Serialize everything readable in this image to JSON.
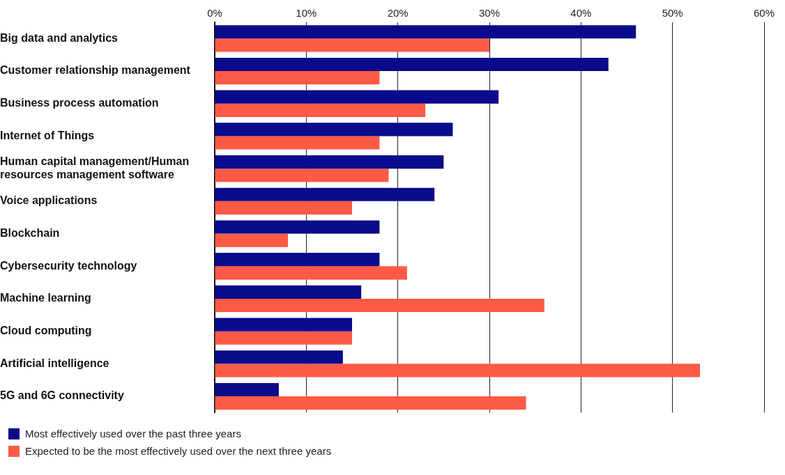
{
  "chart_data": {
    "type": "bar",
    "orientation": "horizontal",
    "categories": [
      "Big data and analytics",
      "Customer relationship management",
      "Business process automation",
      "Internet of Things",
      "Human capital management/Human resources management software",
      "Voice applications",
      "Blockchain",
      "Cybersecurity technology",
      "Machine learning",
      "Cloud computing",
      "Artificial intelligence",
      "5G and 6G connectivity"
    ],
    "series": [
      {
        "name": "Most effectively used over the past three years",
        "color": "#0a0a8c",
        "values": [
          46,
          43,
          31,
          26,
          25,
          24,
          18,
          18,
          16,
          15,
          14,
          7
        ]
      },
      {
        "name": "Expected to be the most effectively used over the next three years",
        "color": "#ff5a46",
        "values": [
          30,
          18,
          23,
          18,
          19,
          15,
          8,
          21,
          36,
          15,
          53,
          34
        ]
      }
    ],
    "xlim": [
      0,
      60
    ],
    "xticks": [
      {
        "value": 0,
        "label": "0%"
      },
      {
        "value": 10,
        "label": "10%"
      },
      {
        "value": 20,
        "label": "20%"
      },
      {
        "value": 30,
        "label": "30%"
      },
      {
        "value": 40,
        "label": "40%"
      },
      {
        "value": 50,
        "label": "50%"
      },
      {
        "value": 60,
        "label": "60%"
      }
    ],
    "grid": "x",
    "legend": "bottom left"
  }
}
